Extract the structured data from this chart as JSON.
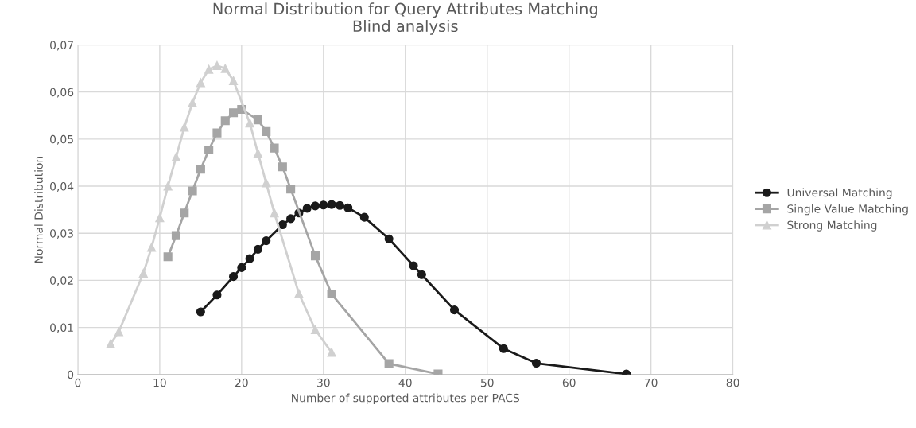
{
  "chart_data": {
    "type": "line",
    "title": "Normal Distribution for Query Attributes Matching\nBlind analysis",
    "xlabel": "Number of supported attributes per PACS",
    "ylabel": "Normal Distribution",
    "xlim": [
      0,
      80
    ],
    "xticks": [
      0,
      10,
      20,
      30,
      40,
      50,
      60,
      70,
      80
    ],
    "ylim": [
      0,
      0.07
    ],
    "yticks": [
      0,
      {
        "value": 0.01,
        "label": "0,01"
      },
      {
        "value": 0.02,
        "label": "0,02"
      },
      {
        "value": 0.03,
        "label": "0,03"
      },
      {
        "value": 0.04,
        "label": "0,04"
      },
      {
        "value": 0.05,
        "label": "0,05"
      },
      {
        "value": 0.06,
        "label": "0,06"
      },
      {
        "value": 0.07,
        "label": "0,07"
      }
    ],
    "grid": true,
    "legend": "right",
    "line_style": "solid",
    "series": [
      {
        "name": "Universal Matching",
        "color": "#1a1a1a",
        "marker": "circle",
        "x": [
          15,
          17,
          19,
          20,
          21,
          22,
          23,
          25,
          26,
          27,
          28,
          29,
          30,
          31,
          32,
          33,
          35,
          38,
          41,
          42,
          46,
          52,
          56,
          67
        ],
        "values": [
          0.0133,
          0.0169,
          0.0208,
          0.0227,
          0.0246,
          0.0266,
          0.0284,
          0.0318,
          0.0331,
          0.0343,
          0.0353,
          0.0358,
          0.036,
          0.0361,
          0.0359,
          0.0354,
          0.0334,
          0.0288,
          0.0231,
          0.0212,
          0.0137,
          0.0055,
          0.0024,
          0.0001
        ]
      },
      {
        "name": "Single Value Matching",
        "color": "#a5a5a5",
        "marker": "square",
        "x": [
          11,
          12,
          13,
          14,
          15,
          16,
          17,
          18,
          19,
          20,
          22,
          23,
          24,
          25,
          26,
          29,
          31,
          38,
          44
        ],
        "values": [
          0.025,
          0.0295,
          0.0343,
          0.039,
          0.0436,
          0.0477,
          0.0513,
          0.0539,
          0.0556,
          0.0563,
          0.0541,
          0.0516,
          0.0481,
          0.0441,
          0.0394,
          0.0252,
          0.0171,
          0.0023,
          0.0001
        ]
      },
      {
        "name": "Strong Matching",
        "color": "#d0d0d0",
        "marker": "triangle",
        "x": [
          4,
          5,
          8,
          9,
          10,
          11,
          12,
          13,
          14,
          15,
          16,
          17,
          18,
          19,
          21,
          22,
          23,
          24,
          27,
          29,
          31
        ],
        "values": [
          0.0065,
          0.0091,
          0.0215,
          0.027,
          0.0333,
          0.04,
          0.0462,
          0.0525,
          0.0577,
          0.062,
          0.0648,
          0.0656,
          0.065,
          0.0624,
          0.0534,
          0.047,
          0.0407,
          0.0343,
          0.0172,
          0.0095,
          0.0047
        ]
      }
    ]
  }
}
